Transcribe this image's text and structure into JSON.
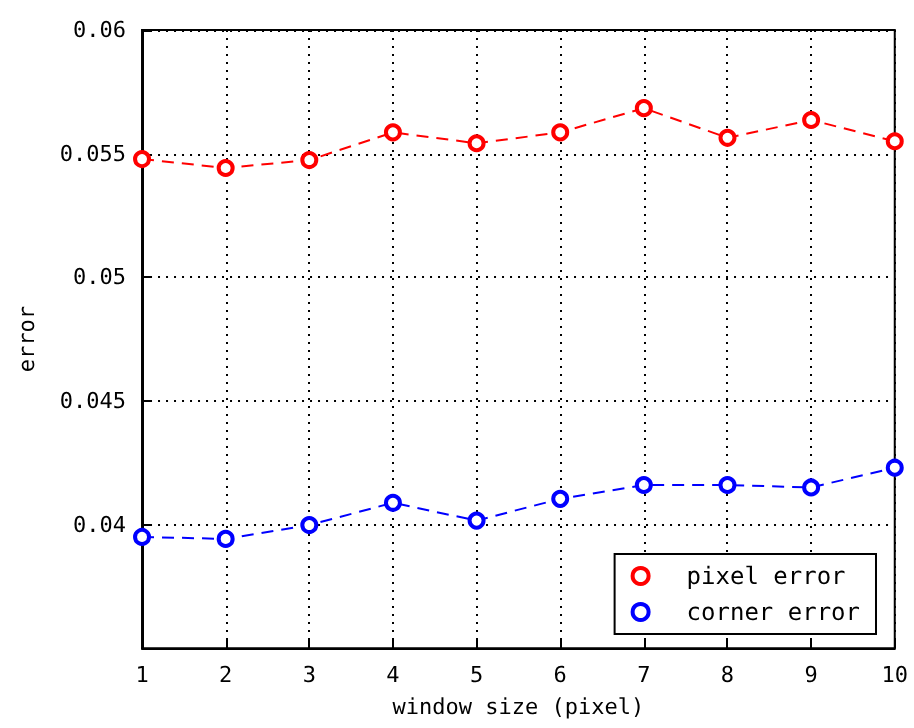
{
  "chart_data": {
    "type": "line",
    "xlabel": "window size (pixel)",
    "ylabel": "error",
    "x": [
      1,
      2,
      3,
      4,
      5,
      6,
      7,
      8,
      9,
      10
    ],
    "series": [
      {
        "name": "pixel error",
        "color": "#ff0000",
        "values": [
          0.05478,
          0.05442,
          0.05474,
          0.05586,
          0.05542,
          0.05586,
          0.05684,
          0.05564,
          0.05636,
          0.0555
        ]
      },
      {
        "name": "corner error",
        "color": "#0000ff",
        "values": [
          0.0395,
          0.03942,
          0.03998,
          0.04088,
          0.04016,
          0.04104,
          0.0416,
          0.0416,
          0.0415,
          0.0423
        ]
      }
    ],
    "xlim": [
      1,
      10
    ],
    "xticks": [
      1,
      2,
      3,
      4,
      5,
      6,
      7,
      8,
      9,
      10
    ],
    "ylim": [
      0.035,
      0.06
    ],
    "yticks": [
      0.04,
      0.045,
      0.05,
      0.055,
      0.06
    ],
    "grid": true,
    "legend": "bottom right",
    "marker": "circle",
    "line_style": "dashed"
  }
}
